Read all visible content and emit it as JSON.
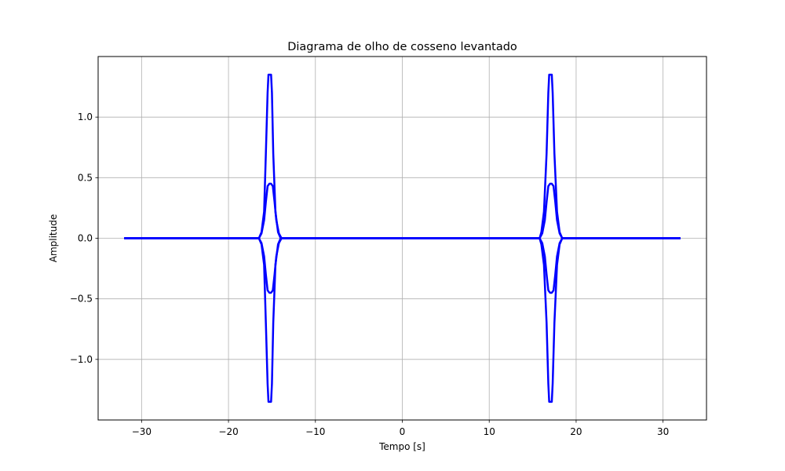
{
  "chart_data": {
    "type": "line",
    "title": "Diagrama de olho de cosseno levantado",
    "xlabel": "Tempo [s]",
    "ylabel": "Amplitude",
    "xlim": [
      -35,
      35
    ],
    "ylim": [
      -1.5,
      1.5
    ],
    "x_ticks": [
      -30,
      -20,
      -10,
      0,
      10,
      20,
      30
    ],
    "x_tick_labels": [
      "−30",
      "−20",
      "−10",
      "0",
      "10",
      "20",
      "30"
    ],
    "y_ticks": [
      -1.0,
      -0.5,
      0.0,
      0.5,
      1.0
    ],
    "y_tick_labels": [
      "−1.0",
      "−0.5",
      "0.0",
      "0.5",
      "1.0"
    ],
    "grid": true,
    "line_color": "#0000ff",
    "series": [
      {
        "x": [
          -32,
          -16.5,
          -16.2,
          -15.9,
          -15.7,
          -15.5,
          -15.4,
          -15.25,
          -15.1,
          -15.0,
          -14.85,
          -14.6,
          -14.3,
          -14.0,
          -13.8,
          15.8,
          16.0,
          16.3,
          16.6,
          16.8,
          16.9,
          17.05,
          17.2,
          17.3,
          17.5,
          17.8,
          18.1,
          18.4,
          32
        ],
        "y": [
          0,
          0,
          0.05,
          0.22,
          0.7,
          1.2,
          1.35,
          1.35,
          1.35,
          1.2,
          0.7,
          0.22,
          0.05,
          0,
          0,
          0,
          0.05,
          0.22,
          0.7,
          1.2,
          1.35,
          1.35,
          1.35,
          1.2,
          0.7,
          0.22,
          0.05,
          0,
          0
        ]
      },
      {
        "x": [
          -32,
          -16.5,
          -16.2,
          -15.9,
          -15.7,
          -15.5,
          -15.4,
          -15.25,
          -15.1,
          -15.0,
          -14.85,
          -14.6,
          -14.3,
          -14.0,
          -13.8,
          15.8,
          16.0,
          16.3,
          16.6,
          16.8,
          16.9,
          17.05,
          17.2,
          17.3,
          17.5,
          17.8,
          18.1,
          18.4,
          32
        ],
        "y": [
          0,
          0,
          -0.05,
          -0.22,
          -0.7,
          -1.2,
          -1.35,
          -1.35,
          -1.35,
          -1.2,
          -0.7,
          -0.22,
          -0.05,
          0,
          0,
          0,
          -0.05,
          -0.22,
          -0.7,
          -1.2,
          -1.35,
          -1.35,
          -1.35,
          -1.2,
          -0.7,
          -0.22,
          -0.05,
          0,
          0
        ]
      },
      {
        "x": [
          -32,
          -16.5,
          -16.2,
          -15.9,
          -15.7,
          -15.5,
          -15.3,
          -15.1,
          -14.9,
          -14.7,
          -14.5,
          -14.2,
          -13.9,
          -13.7,
          15.8,
          16.1,
          16.4,
          16.6,
          16.8,
          17.0,
          17.2,
          17.4,
          17.6,
          17.8,
          18.1,
          18.4,
          32
        ],
        "y": [
          0,
          0,
          0.04,
          0.15,
          0.3,
          0.43,
          0.45,
          0.45,
          0.43,
          0.3,
          0.15,
          0.04,
          0,
          0,
          0,
          0.04,
          0.15,
          0.3,
          0.43,
          0.45,
          0.45,
          0.43,
          0.3,
          0.15,
          0.04,
          0,
          0
        ]
      },
      {
        "x": [
          -32,
          -16.5,
          -16.2,
          -15.9,
          -15.7,
          -15.5,
          -15.3,
          -15.1,
          -14.9,
          -14.7,
          -14.5,
          -14.2,
          -13.9,
          -13.7,
          15.8,
          16.1,
          16.4,
          16.6,
          16.8,
          17.0,
          17.2,
          17.4,
          17.6,
          17.8,
          18.1,
          18.4,
          32
        ],
        "y": [
          0,
          0,
          -0.04,
          -0.15,
          -0.3,
          -0.43,
          -0.45,
          -0.45,
          -0.43,
          -0.3,
          -0.15,
          -0.04,
          0,
          0,
          0,
          -0.04,
          -0.15,
          -0.3,
          -0.43,
          -0.45,
          -0.45,
          -0.43,
          -0.3,
          -0.15,
          -0.04,
          0,
          0
        ]
      }
    ]
  }
}
